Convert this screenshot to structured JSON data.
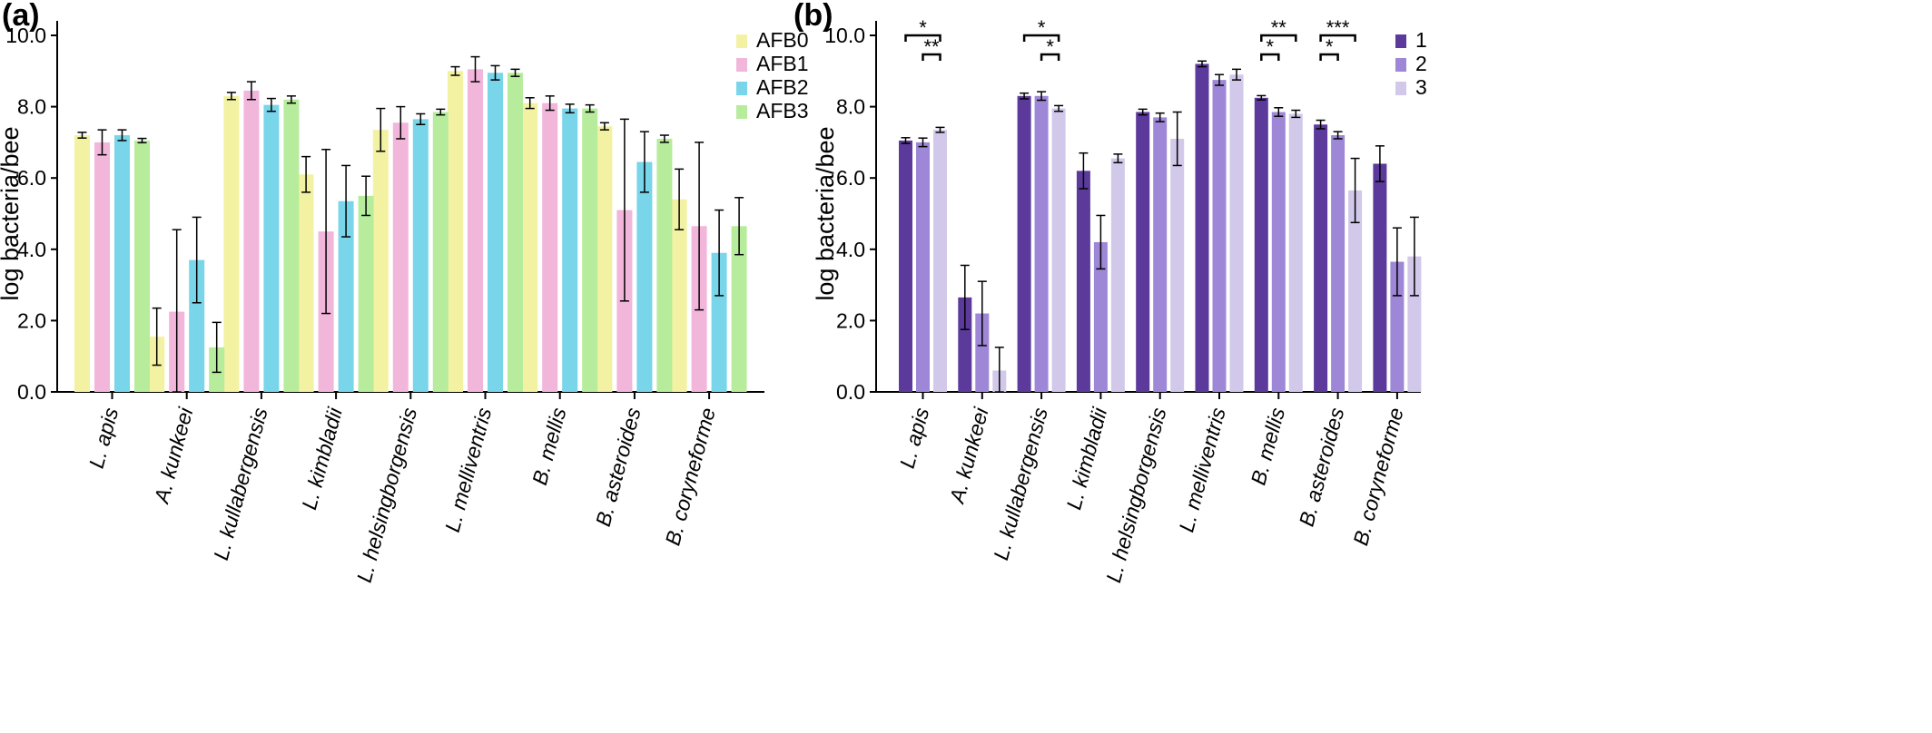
{
  "chart_data": [
    {
      "panel": "(a)",
      "type": "bar",
      "ylabel": "log bacteria/bee",
      "ylim": [
        0,
        10
      ],
      "yticks": [
        "0.0",
        "2.0",
        "4.0",
        "6.0",
        "8.0",
        "10.0"
      ],
      "categories": [
        "L. apis",
        "A. kunkeei",
        "L. kullabergensis",
        "L. kimbladii",
        "L. helsingborgensis",
        "L. melliventris",
        "B. mellis",
        "B. asteroides",
        "B. coryneforme"
      ],
      "legend_position": "top-right",
      "series": [
        {
          "name": "AFB0",
          "color": "#f3f2a2",
          "values": [
            7.2,
            1.55,
            null,
            6.1,
            7.35,
            9.0,
            8.1,
            7.45,
            5.4
          ],
          "errors": [
            0.08,
            0.8,
            null,
            0.5,
            0.6,
            0.12,
            0.15,
            0.1,
            0.85
          ]
        },
        {
          "name": "AFB1",
          "color": "#f2b6db",
          "values": [
            7.0,
            2.25,
            8.45,
            4.5,
            7.55,
            9.05,
            8.1,
            5.1,
            4.65
          ],
          "errors": [
            0.35,
            2.3,
            0.25,
            2.3,
            0.45,
            0.35,
            0.2,
            2.55,
            2.35
          ]
        },
        {
          "name": "AFB2",
          "color": "#79d5e9",
          "values": [
            7.2,
            3.7,
            8.05,
            5.35,
            7.65,
            8.95,
            7.95,
            6.45,
            3.9
          ],
          "errors": [
            0.15,
            1.2,
            0.18,
            1.0,
            0.15,
            0.2,
            0.12,
            0.85,
            1.2
          ]
        },
        {
          "name": "AFB3",
          "color": "#b7ec9d",
          "values": [
            7.05,
            1.25,
            8.2,
            5.5,
            7.85,
            8.95,
            7.95,
            7.1,
            4.65
          ],
          "errors": [
            0.06,
            0.7,
            0.1,
            0.55,
            0.08,
            0.1,
            0.1,
            0.1,
            0.8
          ]
        }
      ],
      "kullabergensis_afb0": {
        "value": 8.3,
        "error": 0.1
      }
    },
    {
      "panel": "(b)",
      "type": "bar",
      "ylabel": "log bacteria/bee",
      "ylim": [
        0,
        10
      ],
      "yticks": [
        "0.0",
        "2.0",
        "4.0",
        "6.0",
        "8.0",
        "10.0"
      ],
      "categories": [
        "L. apis",
        "A. kunkeei",
        "L. kullabergensis",
        "L. kimbladii",
        "L. helsingborgensis",
        "L. melliventris",
        "B. mellis",
        "B. asteroides",
        "B. coryneforme"
      ],
      "legend_position": "top-right",
      "series": [
        {
          "name": "1",
          "color": "#5b3a9b",
          "values": [
            7.05,
            2.65,
            8.3,
            6.2,
            7.85,
            9.2,
            8.25,
            7.5,
            6.4
          ],
          "errors": [
            0.08,
            0.9,
            0.08,
            0.5,
            0.08,
            0.08,
            0.06,
            0.12,
            0.5
          ]
        },
        {
          "name": "2",
          "color": "#9d87d6",
          "values": [
            7.0,
            2.2,
            8.3,
            4.2,
            7.7,
            8.75,
            7.85,
            7.2,
            3.65
          ],
          "errors": [
            0.12,
            0.9,
            0.12,
            0.75,
            0.12,
            0.15,
            0.12,
            0.1,
            0.95
          ]
        },
        {
          "name": "3",
          "color": "#d2c9ea",
          "values": [
            7.35,
            0.6,
            7.95,
            6.55,
            7.1,
            8.9,
            7.8,
            5.65,
            3.8
          ],
          "errors": [
            0.07,
            0.65,
            0.08,
            0.12,
            0.75,
            0.15,
            0.1,
            0.9,
            1.1
          ]
        }
      ],
      "significance": [
        {
          "category": 0,
          "label": "*",
          "from": 0,
          "to": 2,
          "level": 0
        },
        {
          "category": 0,
          "label": "**",
          "from": 1,
          "to": 2,
          "level": 1
        },
        {
          "category": 2,
          "label": "*",
          "from": 0,
          "to": 2,
          "level": 0
        },
        {
          "category": 2,
          "label": "*",
          "from": 1,
          "to": 2,
          "level": 1
        },
        {
          "category": 6,
          "label": "**",
          "from": 0,
          "to": 2,
          "level": 0
        },
        {
          "category": 6,
          "label": "*",
          "from": 0,
          "to": 1,
          "level": 1
        },
        {
          "category": 7,
          "label": "***",
          "from": 0,
          "to": 2,
          "level": 0
        },
        {
          "category": 7,
          "label": "*",
          "from": 0,
          "to": 1,
          "level": 1
        }
      ]
    }
  ]
}
